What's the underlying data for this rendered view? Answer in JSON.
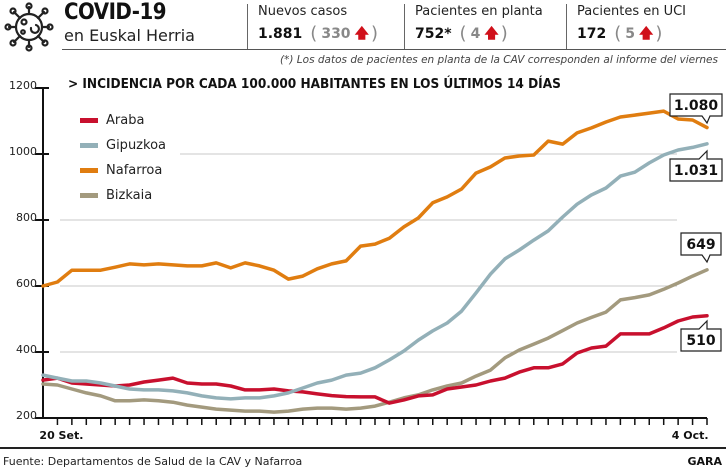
{
  "header": {
    "title": "COVID-19",
    "subtitle": "en Euskal Herria",
    "logo_icon": "virus-icon"
  },
  "stats": [
    {
      "label": "Nuevos casos",
      "value": "1.881",
      "delta": "330",
      "trend": "up"
    },
    {
      "label": "Pacientes en planta",
      "value": "752*",
      "delta": "4",
      "trend": "up"
    },
    {
      "label": "Pacientes en UCI",
      "value": "172",
      "delta": "5",
      "trend": "up"
    }
  ],
  "note": "(*) Los datos de pacientes en planta de la CAV corresponden al informe del viernes",
  "footer": {
    "source": "Fuente: Departamentos de Salud de la CAV y Nafarroa",
    "brand": "GARA"
  },
  "colors": {
    "Araba": "#c8102e",
    "Gipuzkoa": "#93b0b8",
    "Nafarroa": "#e07d10",
    "Bizkaia": "#a39a7e",
    "up_arrow": "#d0101a"
  },
  "chart_data": {
    "type": "line",
    "title": "> INCIDENCIA POR CADA 100.000 HABITANTES EN LOS ÚLTIMOS 14 DÍAS",
    "xlabel": "",
    "ylabel": "",
    "ylim": [
      200,
      1200
    ],
    "yticks": [
      200,
      400,
      600,
      800,
      1000,
      1200
    ],
    "grid": true,
    "legend_position": "top-left",
    "x_tick_labels": [
      {
        "index": 1,
        "label": "20 Set."
      },
      {
        "index": 45,
        "label": "4 Oct."
      }
    ],
    "num_points": 47,
    "series": [
      {
        "name": "Araba",
        "values": [
          315,
          321,
          306,
          303,
          300,
          297,
          300,
          309,
          315,
          321,
          306,
          303,
          303,
          297,
          285,
          285,
          288,
          282,
          279,
          273,
          268,
          265,
          264,
          264,
          245,
          255,
          267,
          270,
          288,
          294,
          300,
          312,
          321,
          339,
          352,
          352,
          364,
          397,
          412,
          418,
          455,
          455,
          455,
          473,
          494,
          506,
          510
        ],
        "end_label": "510"
      },
      {
        "name": "Gipuzkoa",
        "values": [
          330,
          321,
          312,
          312,
          306,
          297,
          288,
          285,
          285,
          282,
          276,
          267,
          261,
          258,
          261,
          261,
          267,
          276,
          291,
          306,
          315,
          330,
          336,
          352,
          376,
          403,
          436,
          464,
          488,
          524,
          579,
          636,
          682,
          709,
          739,
          767,
          809,
          848,
          876,
          897,
          933,
          945,
          973,
          997,
          1012,
          1020,
          1031
        ],
        "end_label": "1.031"
      },
      {
        "name": "Nafarroa",
        "values": [
          600,
          612,
          648,
          648,
          648,
          657,
          667,
          664,
          667,
          664,
          661,
          661,
          670,
          655,
          670,
          661,
          648,
          621,
          630,
          652,
          667,
          676,
          721,
          727,
          745,
          779,
          806,
          852,
          870,
          894,
          942,
          961,
          988,
          994,
          997,
          1039,
          1030,
          1064,
          1079,
          1097,
          1112,
          1118,
          1124,
          1130,
          1106,
          1103,
          1080
        ],
        "end_label": "1.080"
      },
      {
        "name": "Bizkaia",
        "values": [
          303,
          300,
          288,
          276,
          267,
          252,
          252,
          255,
          252,
          248,
          239,
          233,
          227,
          224,
          221,
          221,
          218,
          221,
          227,
          230,
          230,
          227,
          230,
          236,
          248,
          261,
          270,
          285,
          297,
          306,
          327,
          345,
          382,
          406,
          424,
          442,
          465,
          488,
          505,
          521,
          558,
          565,
          573,
          590,
          609,
          630,
          649
        ],
        "end_label": "649"
      }
    ]
  }
}
